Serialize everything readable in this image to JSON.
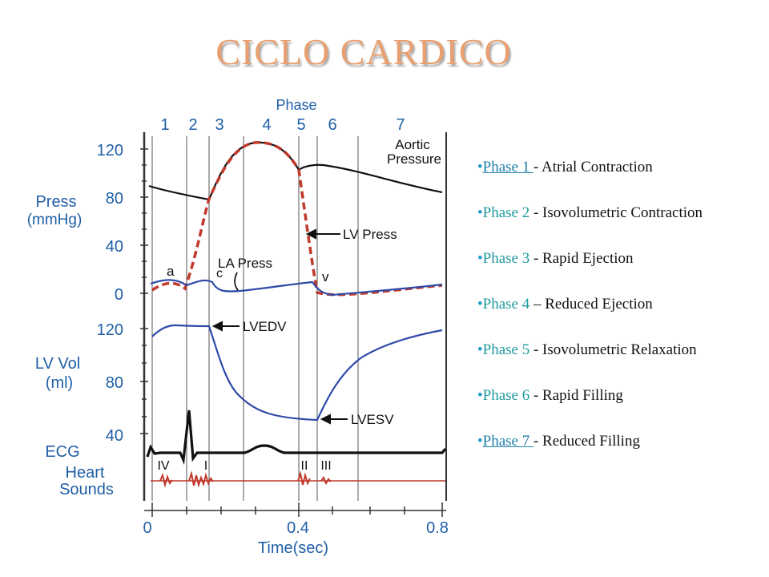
{
  "title": "CICLO CARDICO",
  "diagram": {
    "phase_header": "Phase",
    "phase_numbers": [
      "1",
      "2",
      "3",
      "4",
      "5",
      "6",
      "7"
    ],
    "press_label": [
      "Press",
      "(mmHg)"
    ],
    "press_ticks": [
      "120",
      "80",
      "40",
      "0"
    ],
    "vol_label": [
      "LV Vol",
      "(ml)"
    ],
    "vol_ticks": [
      "120",
      "80",
      "40"
    ],
    "ecg_label": "ECG",
    "sounds_label": [
      "Heart",
      "Sounds"
    ],
    "time_ticks": [
      "0",
      "0.4",
      "0.8"
    ],
    "time_label": "Time(sec)",
    "annotations": {
      "aortic": [
        "Aortic",
        "Pressure"
      ],
      "lv_press": "LV Press",
      "la_press": "LA Press",
      "a": "a",
      "c": "c",
      "v": "v",
      "lvedv": "LVEDV",
      "lvesv": "LVESV"
    },
    "sounds": [
      "IV",
      "I",
      "II",
      "III"
    ],
    "colors": {
      "axis_text": "#1f5fa6",
      "lv_press": "#c0392b",
      "la_press": "#2e4aa8",
      "sounds": "#c0392b",
      "aortic": "#111111"
    }
  },
  "phases": [
    {
      "bullet": "•",
      "num": "Phase 1 ",
      "desc": "- Atrial Contraction",
      "link": true
    },
    {
      "bullet": "•",
      "num": "Phase 2 ",
      "desc": " - Isovolumetric Contraction",
      "link": false
    },
    {
      "bullet": "•",
      "num": "Phase 3 ",
      "desc": "- Rapid Ejection",
      "link": false
    },
    {
      "bullet": "•",
      "num": "Phase 4 ",
      "desc": "– Reduced Ejection",
      "link": false
    },
    {
      "bullet": "•",
      "num": "Phase 5 ",
      "desc": "- Isovolumetric Relaxation",
      "link": false
    },
    {
      "bullet": "•",
      "num": "Phase 6 ",
      "desc": "- Rapid Filling",
      "link": false
    },
    {
      "bullet": "•",
      "num": "Phase 7 ",
      "desc": "- Reduced Filling",
      "link": true
    }
  ]
}
